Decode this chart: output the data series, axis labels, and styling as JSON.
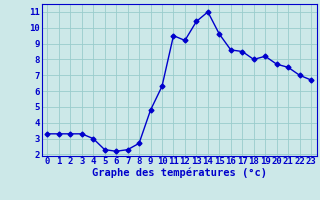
{
  "x": [
    0,
    1,
    2,
    3,
    4,
    5,
    6,
    7,
    8,
    9,
    10,
    11,
    12,
    13,
    14,
    15,
    16,
    17,
    18,
    19,
    20,
    21,
    22,
    23
  ],
  "y": [
    3.3,
    3.3,
    3.3,
    3.3,
    3.0,
    2.3,
    2.2,
    2.3,
    2.7,
    4.8,
    6.3,
    9.5,
    9.2,
    10.4,
    11.0,
    9.6,
    8.6,
    8.5,
    8.0,
    8.2,
    7.7,
    7.5,
    7.0,
    6.7
  ],
  "xlabel": "Graphe des températures (°c)",
  "xlim": [
    -0.5,
    23.5
  ],
  "ylim": [
    1.9,
    11.5
  ],
  "yticks": [
    2,
    3,
    4,
    5,
    6,
    7,
    8,
    9,
    10,
    11
  ],
  "xticks": [
    0,
    1,
    2,
    3,
    4,
    5,
    6,
    7,
    8,
    9,
    10,
    11,
    12,
    13,
    14,
    15,
    16,
    17,
    18,
    19,
    20,
    21,
    22,
    23
  ],
  "line_color": "#0000cc",
  "marker": "D",
  "marker_size": 2.5,
  "bg_color": "#cce8e8",
  "grid_color": "#99cccc",
  "xlabel_color": "#0000cc",
  "xlabel_fontsize": 7.5,
  "tick_color": "#0000cc",
  "tick_fontsize": 6.5
}
